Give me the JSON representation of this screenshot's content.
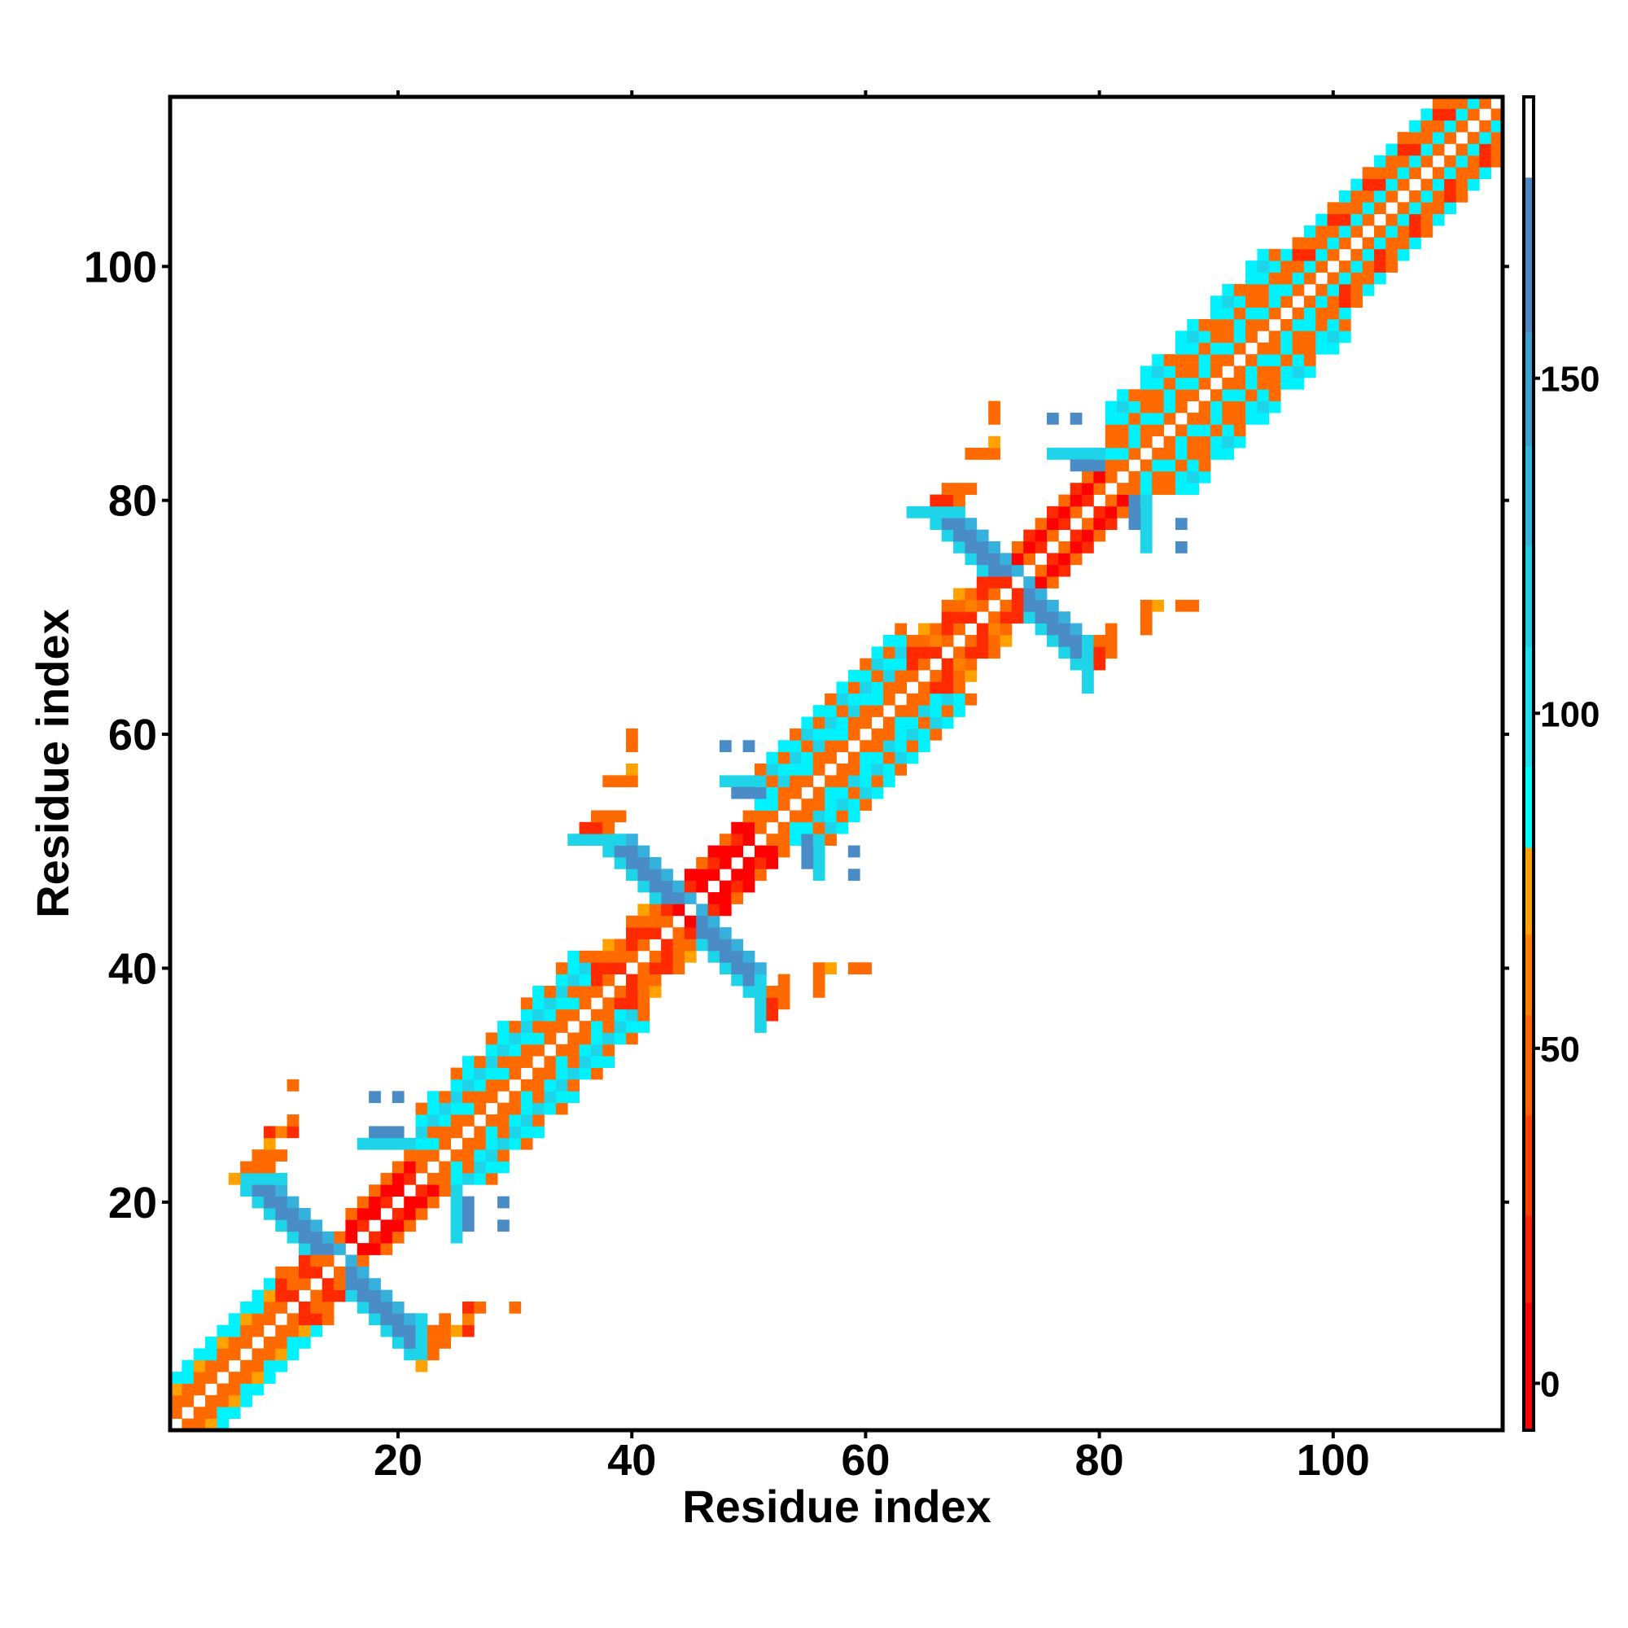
{
  "chart_data": {
    "type": "heatmap",
    "xlabel": "Residue index",
    "ylabel": "Residue index",
    "n_residues": 114,
    "xlim": [
      0.5,
      114.5
    ],
    "ylim": [
      0.5,
      114.5
    ],
    "xticks": [
      20,
      40,
      60,
      80,
      100
    ],
    "yticks": [
      20,
      40,
      60,
      80,
      100
    ],
    "symmetric": true,
    "colorbar": {
      "min": -7,
      "max": 192,
      "ticks": [
        0,
        50,
        100,
        150
      ],
      "stops": [
        {
          "from": -7,
          "to": 12,
          "color": "#ff0000"
        },
        {
          "from": 12,
          "to": 25,
          "color": "#ff2000"
        },
        {
          "from": 25,
          "to": 40,
          "color": "#ff4000"
        },
        {
          "from": 40,
          "to": 55,
          "color": "#ff6400"
        },
        {
          "from": 55,
          "to": 67,
          "color": "#ff8000"
        },
        {
          "from": 67,
          "to": 80,
          "color": "#ffa200"
        },
        {
          "from": 80,
          "to": 92,
          "color": "#00ffff"
        },
        {
          "from": 92,
          "to": 110,
          "color": "#1cdff0"
        },
        {
          "from": 110,
          "to": 125,
          "color": "#22cde6"
        },
        {
          "from": 125,
          "to": 140,
          "color": "#33b6dc"
        },
        {
          "from": 140,
          "to": 157,
          "color": "#409ed2"
        },
        {
          "from": 157,
          "to": 180,
          "color": "#4f86c4"
        },
        {
          "from": 180,
          "to": 192,
          "color": "#ffffff"
        }
      ]
    },
    "codes": {
      "R": {
        "value": 2,
        "color": "#ff0000"
      },
      "r": {
        "value": 20,
        "color": "#ff2a00"
      },
      "o": {
        "value": 47,
        "color": "#ff6a00"
      },
      "O": {
        "value": 60,
        "color": "#ff8000"
      },
      "y": {
        "value": 72,
        "color": "#ffa200"
      },
      "c": {
        "value": 86,
        "color": "#00f2ff"
      },
      "t": {
        "value": 112,
        "color": "#1ed4e8"
      },
      "b": {
        "value": 135,
        "color": "#36b0dc"
      },
      "B": {
        "value": 165,
        "color": "#4a8cc6"
      }
    },
    "band_segments": [
      {
        "from": 1,
        "to": 9,
        "patterns": [
          "ooyc",
          "oocc"
        ]
      },
      {
        "from": 10,
        "to": 13,
        "patterns": [
          "orro",
          "roo"
        ]
      },
      {
        "from": 14,
        "to": 15,
        "patterns": [
          "oy",
          "yo"
        ]
      },
      {
        "from": 16,
        "to": 21,
        "patterns": [
          "RRo",
          "rRo"
        ]
      },
      {
        "from": 22,
        "to": 36,
        "patterns": [
          "ooctco",
          "ocotcc",
          "oocto"
        ]
      },
      {
        "from": 37,
        "to": 43,
        "patterns": [
          "orro",
          "oroy",
          "roo"
        ]
      },
      {
        "from": 44,
        "to": 50,
        "patterns": [
          "RRo",
          "RrR"
        ]
      },
      {
        "from": 51,
        "to": 63,
        "patterns": [
          "ooctco",
          "occotc",
          "ootcoc"
        ]
      },
      {
        "from": 64,
        "to": 72,
        "patterns": [
          "orro",
          "oroy",
          "rOo"
        ]
      },
      {
        "from": 73,
        "to": 80,
        "patterns": [
          "rRo",
          "oRr"
        ]
      },
      {
        "from": 81,
        "to": 95,
        "patterns": [
          "oocoocc",
          "ocooctc",
          "occoco"
        ]
      },
      {
        "from": 96,
        "to": 113,
        "patterns": [
          "ocooc",
          "ocoro",
          "ocroc"
        ]
      }
    ],
    "arms": [
      {
        "i0": 12,
        "j0": 16,
        "len": 6,
        "profile": "tBBb"
      },
      {
        "i0": 42,
        "j0": 46,
        "len": 6,
        "profile": "tBBb"
      },
      {
        "i0": 70,
        "j0": 74,
        "len": 6,
        "profile": "tBBb"
      }
    ],
    "runs": [
      [
        7,
        10,
        22,
        "t"
      ],
      [
        6,
        6,
        22,
        "y"
      ],
      [
        7,
        9,
        23,
        "o"
      ],
      [
        8,
        10,
        24,
        "o"
      ],
      [
        9,
        9,
        25,
        "y"
      ],
      [
        9,
        9,
        26,
        "r"
      ],
      [
        10,
        10,
        26,
        "O"
      ],
      [
        11,
        11,
        26,
        "r"
      ],
      [
        11,
        11,
        27,
        "o"
      ],
      [
        11,
        11,
        30,
        "o"
      ],
      [
        17,
        21,
        25,
        "t"
      ],
      [
        18,
        20,
        26,
        "B"
      ],
      [
        18,
        18,
        29,
        "B"
      ],
      [
        20,
        20,
        29,
        "B"
      ],
      [
        35,
        39,
        51,
        "t"
      ],
      [
        36,
        37,
        52,
        "r"
      ],
      [
        38,
        38,
        52,
        "o"
      ],
      [
        37,
        39,
        53,
        "o"
      ],
      [
        38,
        40,
        56,
        "o"
      ],
      [
        40,
        40,
        57,
        "y"
      ],
      [
        40,
        40,
        59,
        "o"
      ],
      [
        40,
        40,
        60,
        "o"
      ],
      [
        48,
        51,
        56,
        "t"
      ],
      [
        49,
        51,
        55,
        "B"
      ],
      [
        48,
        48,
        59,
        "B"
      ],
      [
        50,
        50,
        59,
        "B"
      ],
      [
        64,
        68,
        79,
        "t"
      ],
      [
        66,
        67,
        80,
        "r"
      ],
      [
        68,
        68,
        80,
        "o"
      ],
      [
        67,
        69,
        81,
        "o"
      ],
      [
        69,
        71,
        84,
        "o"
      ],
      [
        71,
        71,
        85,
        "y"
      ],
      [
        71,
        71,
        87,
        "o"
      ],
      [
        71,
        71,
        88,
        "o"
      ],
      [
        76,
        80,
        84,
        "t"
      ],
      [
        78,
        80,
        83,
        "B"
      ],
      [
        76,
        76,
        87,
        "B"
      ],
      [
        78,
        78,
        87,
        "B"
      ]
    ]
  }
}
